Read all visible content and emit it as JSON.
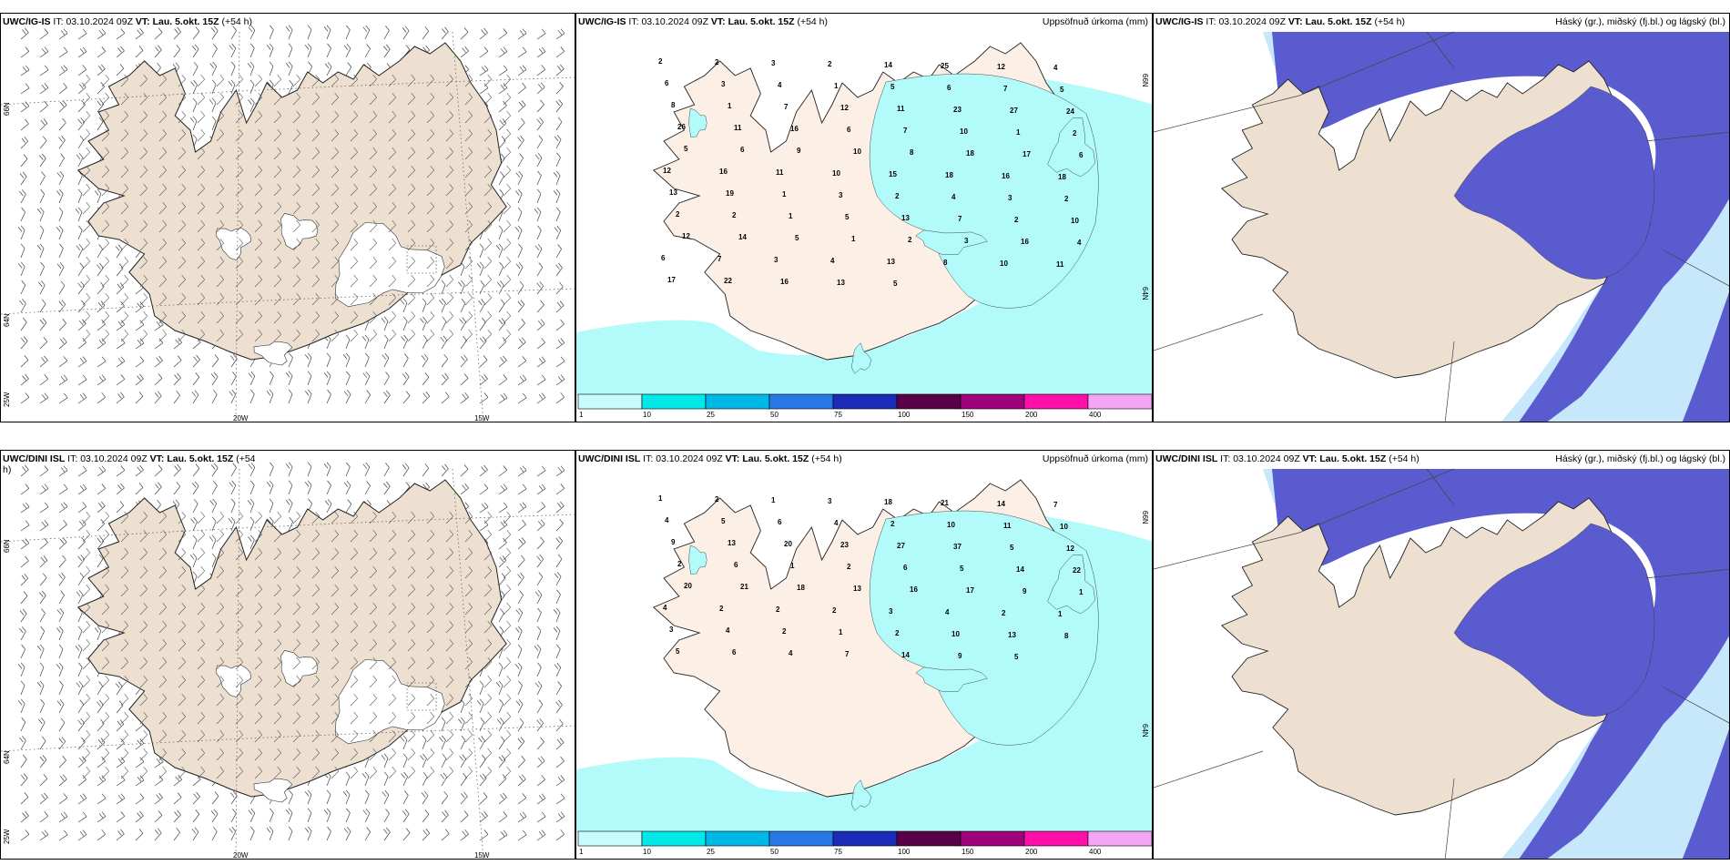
{
  "colors": {
    "land": "#eee0d0",
    "land_light": "#fcefe6",
    "precip_light": "#b3fafa",
    "cloud_high": "#5b5bd0",
    "cloud_mid": "#8aa6ee",
    "cloud_low": "#c7e8fb",
    "ice": "#ffffff"
  },
  "panels": [
    {
      "id": "wind-igis",
      "model": "UWC/IG-IS",
      "it_label": "IT:",
      "it": "03.10.2024 09Z",
      "vt_label": "VT:",
      "vt": "Lau. 5.okt. 15Z",
      "lead": "(+54 h)",
      "right_title": "",
      "kind": "wind",
      "lat_labels": [
        "66N",
        "64N",
        "25W"
      ],
      "lon_labels": [
        "20W",
        "15W"
      ]
    },
    {
      "id": "precip-igis",
      "model": "UWC/IG-IS",
      "it_label": "IT:",
      "it": "03.10.2024 09Z",
      "vt_label": "VT:",
      "vt": "Lau. 5.okt. 15Z",
      "lead": "(+54 h)",
      "right_title": "Uppsöfnuð úrkoma (mm)",
      "kind": "precip",
      "lat_labels": [
        "66N",
        "64N"
      ],
      "values": [
        "2",
        "2",
        "3",
        "2",
        "14",
        "25",
        "12",
        "4",
        "6",
        "3",
        "4",
        "1",
        "5",
        "6",
        "7",
        "5",
        "8",
        "1",
        "7",
        "12",
        "11",
        "23",
        "27",
        "24",
        "26",
        "11",
        "16",
        "6",
        "7",
        "10",
        "1",
        "2",
        "5",
        "6",
        "9",
        "10",
        "8",
        "18",
        "17",
        "6",
        "12",
        "16",
        "11",
        "10",
        "15",
        "18",
        "16",
        "18",
        "13",
        "19",
        "1",
        "3",
        "2",
        "4",
        "3",
        "2",
        "2",
        "2",
        "1",
        "5",
        "13",
        "7",
        "2",
        "10",
        "12",
        "14",
        "5",
        "1",
        "2",
        "3",
        "16",
        "4",
        "6",
        "7",
        "3",
        "4",
        "13",
        "8",
        "10",
        "11",
        "17",
        "22",
        "16",
        "13",
        "5"
      ]
    },
    {
      "id": "cloud-igis",
      "model": "UWC/IG-IS",
      "it_label": "IT:",
      "it": "03.10.2024 09Z",
      "vt_label": "VT:",
      "vt": "Lau. 5.okt. 15Z",
      "lead": "(+54 h)",
      "right_title": "Háský (gr.), miðský (fj.bl.) og lágský (bl.)",
      "kind": "cloud"
    },
    {
      "id": "wind-dini",
      "model": "UWC/DINI ISL",
      "it_label": "IT:",
      "it": "03.10.2024 09Z",
      "vt_label": "VT:",
      "vt": "Lau. 5.okt. 15Z",
      "lead": "(+54",
      "lead2": "h)",
      "right_title": "",
      "kind": "wind",
      "lat_labels": [
        "66N",
        "64N",
        "25W"
      ],
      "lon_labels": [
        "20W",
        "15W"
      ]
    },
    {
      "id": "precip-dini",
      "model": "UWC/DINI ISL",
      "it_label": "IT:",
      "it": "03.10.2024 09Z",
      "vt_label": "VT:",
      "vt": "Lau. 5.okt. 15Z",
      "lead": "(+54 h)",
      "right_title": "Uppsöfnuð úrkoma (mm)",
      "kind": "precip",
      "lat_labels": [
        "66N",
        "64N"
      ],
      "values": [
        "1",
        "2",
        "1",
        "3",
        "18",
        "21",
        "14",
        "7",
        "4",
        "5",
        "6",
        "4",
        "2",
        "10",
        "11",
        "10",
        "9",
        "13",
        "20",
        "23",
        "27",
        "37",
        "5",
        "12",
        "2",
        "6",
        "1",
        "2",
        "6",
        "5",
        "14",
        "22",
        "20",
        "21",
        "18",
        "13",
        "16",
        "17",
        "9",
        "1",
        "4",
        "2",
        "2",
        "2",
        "3",
        "4",
        "2",
        "1",
        "3",
        "4",
        "2",
        "1",
        "2",
        "10",
        "13",
        "8",
        "5",
        "6",
        "4",
        "7",
        "14",
        "9",
        "5"
      ]
    },
    {
      "id": "cloud-dini",
      "model": "UWC/DINI ISL",
      "it_label": "IT:",
      "it": "03.10.2024 09Z",
      "vt_label": "VT:",
      "vt": "Lau. 5.okt. 15Z",
      "lead": "(+54 h)",
      "right_title": "Háský (gr.), miðský (fj.bl.) og lágský (bl.)",
      "kind": "cloud"
    }
  ],
  "colorbar": {
    "labels": [
      "1",
      "10",
      "25",
      "50",
      "75",
      "100",
      "150",
      "200",
      "400"
    ],
    "colors": [
      "#c8fcfc",
      "#00e8e8",
      "#00b8e8",
      "#2878e8",
      "#1c2cb8",
      "#5a0046",
      "#a0007a",
      "#ff10a8",
      "#f4a6f4"
    ]
  }
}
